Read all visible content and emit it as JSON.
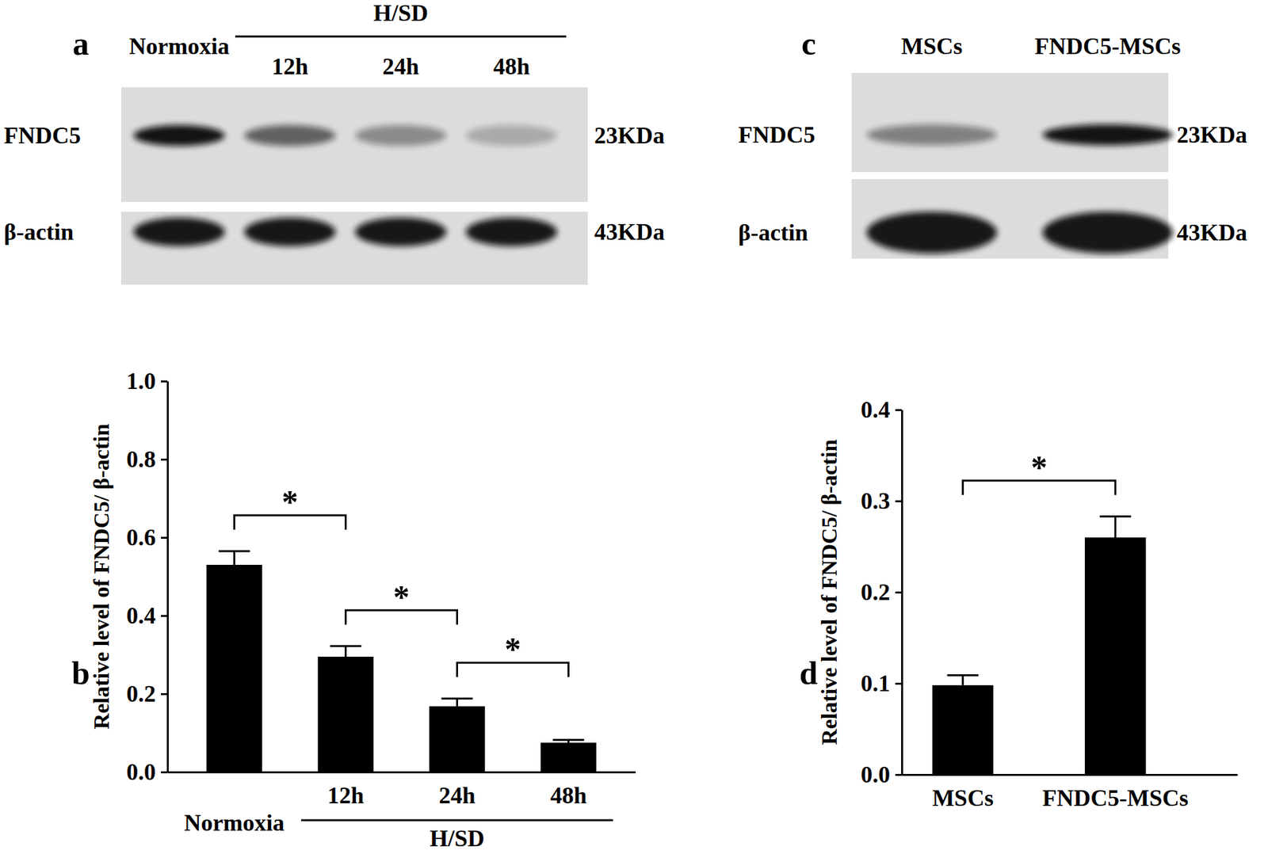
{
  "chart_data": [
    {
      "type": "bar",
      "title": "b",
      "categories": [
        "Normoxia",
        "12h",
        "24h",
        "48h"
      ],
      "values": [
        0.53,
        0.295,
        0.168,
        0.075
      ],
      "errors": [
        0.035,
        0.027,
        0.02,
        0.007
      ],
      "color": "#000000",
      "ylabel": "Relative level of FNDC5/ β-actin",
      "ylim": [
        0,
        1
      ],
      "yticks": [
        {
          "value": 0,
          "label": "0.0"
        },
        0.2,
        0.4,
        0.6,
        0.8,
        {
          "value": 1,
          "label": "1.0"
        }
      ],
      "annotations": [
        {
          "text": "H/SD",
          "from": 1,
          "to": 3
        }
      ],
      "significance": [
        {
          "from": 0,
          "to": 1,
          "label": "*"
        },
        {
          "from": 1,
          "to": 2,
          "label": "*"
        },
        {
          "from": 2,
          "to": 3,
          "label": "*"
        }
      ]
    },
    {
      "type": "bar",
      "title": "d",
      "categories": [
        "MSCs",
        "FNDC5-MSCs"
      ],
      "values": [
        0.098,
        0.26
      ],
      "errors": [
        0.011,
        0.023
      ],
      "color": "#000000",
      "ylabel": "Relative level of FNDC5/ β-actin",
      "ylim": [
        0,
        0.4
      ],
      "yticks": [
        {
          "value": 0,
          "label": "0.0"
        },
        0.1,
        0.2,
        0.3,
        0.4
      ],
      "significance": [
        {
          "from": 0,
          "to": 1,
          "label": "*"
        }
      ]
    }
  ],
  "blots": [
    {
      "title": "a",
      "lanes": [
        "Normoxia",
        "12h",
        "24h",
        "48h"
      ],
      "lane_group": {
        "text": "H/SD",
        "from": 1,
        "to": 3
      },
      "rows": [
        {
          "protein": "FNDC5",
          "size": "23KDa"
        },
        {
          "protein": "β-actin",
          "size": "43KDa"
        }
      ]
    },
    {
      "title": "c",
      "lanes": [
        "MSCs",
        "FNDC5-MSCs"
      ],
      "rows": [
        {
          "protein": "FNDC5",
          "size": "23KDa"
        },
        {
          "protein": "β-actin",
          "size": "43KDa"
        }
      ]
    }
  ]
}
